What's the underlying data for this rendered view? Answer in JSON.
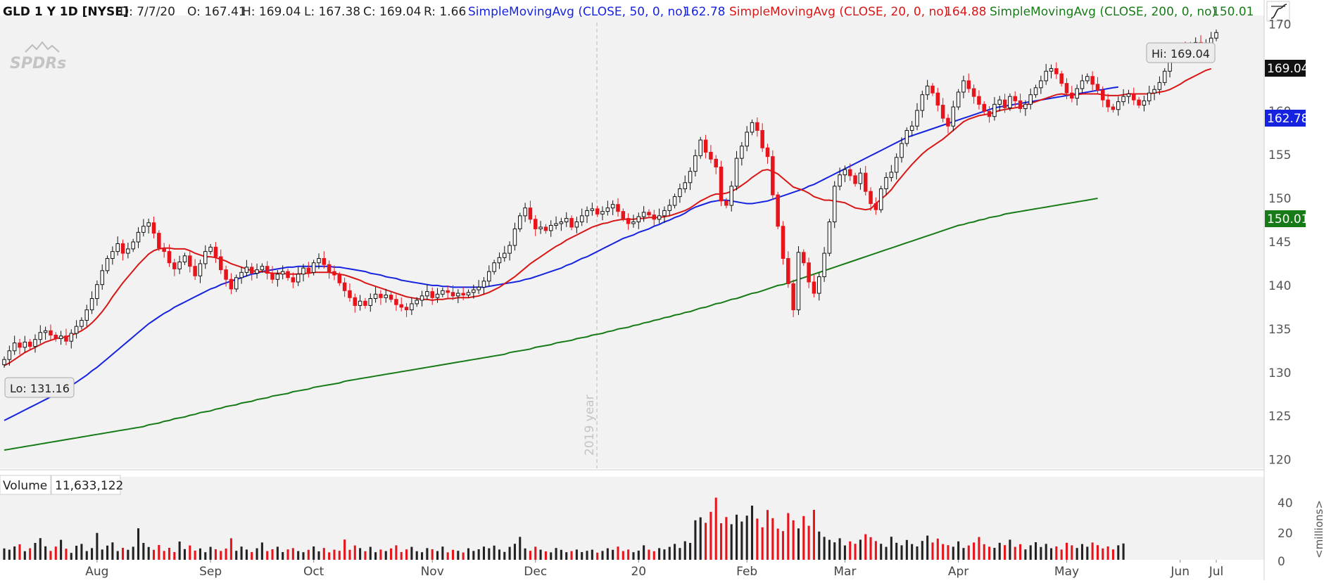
{
  "colors": {
    "background": "#f2f2f2",
    "up_candle": "#ffffff",
    "down_candle": "#e8141c",
    "sma50": "#1523e0",
    "sma20": "#d81616",
    "sma200": "#167a16",
    "volume_up": "#222222",
    "volume_down": "#e8141c"
  },
  "header": {
    "symbol": "GLD 1 Y 1D [NYSE]",
    "date": "D: 7/7/20",
    "open": "O: 167.41",
    "high": "H: 169.04",
    "low": "L: 167.38",
    "close": "C: 169.04",
    "range": "R: 1.66",
    "sma50_label": "SimpleMovingAvg (CLOSE, 50, 0, no)",
    "sma50_value": "162.78",
    "sma20_label": "SimpleMovingAvg (CLOSE, 20, 0, no)",
    "sma20_value": "164.88",
    "sma200_label": "SimpleMovingAvg (CLOSE, 200, 0, no)",
    "sma200_value": "150.01"
  },
  "logo_text": "SPDRs",
  "year_divider_label": "2019 year",
  "hi_label": "Hi: 169.04",
  "lo_label": "Lo: 131.16",
  "tags": {
    "last": "169.04",
    "sma50": "162.78",
    "sma200": "150.01"
  },
  "volume_panel": {
    "label": "Volume",
    "value": "11,633,122",
    "unit_label": "<millions>",
    "y_ticks": [
      "40",
      "20",
      "0"
    ]
  },
  "chart_data": {
    "type": "candlestick",
    "y_ticks": [
      "170",
      "165",
      "160",
      "155",
      "150",
      "145",
      "140",
      "135",
      "130",
      "125",
      "120"
    ],
    "ylim": [
      119,
      171
    ],
    "x_ticks": [
      "Aug",
      "Sep",
      "Oct",
      "Nov",
      "Dec",
      "20",
      "Feb",
      "Mar",
      "Apr",
      "May",
      "Jun",
      "Jul"
    ],
    "closes": [
      131.5,
      132.5,
      133.4,
      132.9,
      133.5,
      133.0,
      133.8,
      134.6,
      134.8,
      134.3,
      133.9,
      134.2,
      133.6,
      134.5,
      135.3,
      136.0,
      137.2,
      138.5,
      140.1,
      141.7,
      143.1,
      143.9,
      144.8,
      143.7,
      144.2,
      145.0,
      146.1,
      146.8,
      147.2,
      146.0,
      144.3,
      143.9,
      142.6,
      141.9,
      142.7,
      143.4,
      142.2,
      141.1,
      142.5,
      143.9,
      144.4,
      143.3,
      141.8,
      140.7,
      139.6,
      140.9,
      141.5,
      142.1,
      141.4,
      141.8,
      142.2,
      141.4,
      140.7,
      141.3,
      141.6,
      140.9,
      140.4,
      141.3,
      142.0,
      141.5,
      142.6,
      143.1,
      142.4,
      141.6,
      141.2,
      140.3,
      139.4,
      138.6,
      137.7,
      138.2,
      137.7,
      138.5,
      139.0,
      138.6,
      138.9,
      138.4,
      137.8,
      137.5,
      137.2,
      137.9,
      138.3,
      138.8,
      139.3,
      138.6,
      139.0,
      139.4,
      139.2,
      138.8,
      139.1,
      138.9,
      139.2,
      139.5,
      139.8,
      140.5,
      141.6,
      142.6,
      143.2,
      143.7,
      144.6,
      146.5,
      148.0,
      148.9,
      147.6,
      146.5,
      146.7,
      146.3,
      146.9,
      147.1,
      147.3,
      147.7,
      146.7,
      147.3,
      148.0,
      148.6,
      148.8,
      148.2,
      148.5,
      148.9,
      149.3,
      148.5,
      147.7,
      147.1,
      147.3,
      147.9,
      148.4,
      148.1,
      147.6,
      148.0,
      148.6,
      149.2,
      150.2,
      151.1,
      151.8,
      153.1,
      154.9,
      156.7,
      155.3,
      154.5,
      153.6,
      149.7,
      149.2,
      151.4,
      154.6,
      156.0,
      157.6,
      158.7,
      157.8,
      155.8,
      154.8,
      150.4,
      146.8,
      143.1,
      140.2,
      137.2,
      143.8,
      142.6,
      140.4,
      139.1,
      141.0,
      143.7,
      147.3,
      151.4,
      152.7,
      153.3,
      152.6,
      151.7,
      152.9,
      150.8,
      149.4,
      148.7,
      151.1,
      152.4,
      153.0,
      154.7,
      156.3,
      157.8,
      158.3,
      160.1,
      161.9,
      162.9,
      162.1,
      160.7,
      159.2,
      158.3,
      160.5,
      162.2,
      163.5,
      162.6,
      161.7,
      160.8,
      160.0,
      159.4,
      160.8,
      161.3,
      160.4,
      161.7,
      161.2,
      160.3,
      160.8,
      161.9,
      162.7,
      163.5,
      164.6,
      164.9,
      164.3,
      163.2,
      162.1,
      161.5,
      162.6,
      163.5,
      164.0,
      163.1,
      162.4,
      161.3,
      160.5,
      160.2,
      161.1,
      161.7,
      162.0,
      161.3,
      160.7,
      161.2,
      162.1,
      162.5,
      163.3,
      164.6,
      166.1,
      167.0,
      167.3,
      166.8,
      167.6,
      167.9,
      167.2,
      167.8,
      168.4,
      169.04
    ],
    "sma20": [
      130.8,
      131.1,
      131.5,
      131.9,
      132.3,
      132.6,
      132.9,
      133.2,
      133.5,
      133.7,
      133.9,
      134.0,
      134.1,
      134.3,
      134.5,
      134.8,
      135.2,
      135.7,
      136.3,
      137.0,
      137.8,
      138.7,
      139.5,
      140.3,
      141.0,
      141.7,
      142.4,
      143.0,
      143.6,
      144.0,
      144.2,
      144.3,
      144.3,
      144.2,
      144.2,
      144.2,
      144.0,
      143.7,
      143.5,
      143.3,
      143.3,
      143.2,
      143.0,
      142.8,
      142.5,
      142.3,
      142.1,
      141.9,
      141.7,
      141.6,
      141.6,
      141.5,
      141.4,
      141.4,
      141.4,
      141.3,
      141.3,
      141.3,
      141.4,
      141.4,
      141.5,
      141.5,
      141.5,
      141.5,
      141.4,
      141.3,
      141.2,
      141.0,
      140.8,
      140.6,
      140.3,
      140.1,
      139.9,
      139.7,
      139.5,
      139.3,
      139.1,
      138.9,
      138.7,
      138.6,
      138.5,
      138.4,
      138.4,
      138.3,
      138.4,
      138.4,
      138.5,
      138.5,
      138.6,
      138.6,
      138.6,
      138.7,
      138.8,
      139.0,
      139.2,
      139.5,
      139.8,
      140.2,
      140.6,
      141.0,
      141.5,
      142.0,
      142.5,
      142.9,
      143.3,
      143.7,
      144.1,
      144.5,
      144.8,
      145.2,
      145.5,
      145.8,
      146.1,
      146.4,
      146.7,
      146.9,
      147.1,
      147.2,
      147.4,
      147.5,
      147.6,
      147.6,
      147.6,
      147.7,
      147.7,
      147.8,
      147.8,
      147.8,
      147.9,
      148.0,
      148.2,
      148.4,
      148.6,
      148.9,
      149.3,
      149.7,
      150.0,
      150.3,
      150.5,
      150.5,
      150.6,
      150.8,
      151.1,
      151.5,
      151.9,
      152.4,
      152.8,
      153.2,
      153.3,
      153.1,
      152.8,
      152.3,
      151.8,
      151.3,
      151.1,
      150.9,
      150.6,
      150.2,
      150.0,
      149.8,
      149.8,
      149.7,
      149.6,
      149.5,
      149.2,
      148.9,
      148.8,
      148.7,
      148.8,
      149.4,
      149.9,
      150.4,
      151.0,
      151.8,
      152.5,
      153.2,
      153.9,
      154.5,
      155.1,
      155.6,
      156.0,
      156.4,
      156.8,
      157.3,
      157.8,
      158.3,
      158.8,
      159.1,
      159.3,
      159.5,
      159.6,
      159.7,
      159.9,
      160.1,
      160.2,
      160.3,
      160.4,
      160.5,
      160.7,
      160.9,
      161.1,
      161.3,
      161.5,
      161.7,
      161.9,
      162.0,
      161.9,
      161.9,
      161.9,
      162.0,
      162.0,
      162.0,
      162.0,
      161.9,
      161.8,
      161.8,
      161.8,
      161.9,
      162.0,
      162.0,
      162.0,
      162.0,
      162.0,
      162.1,
      162.2,
      162.3,
      162.5,
      162.8,
      163.1,
      163.5,
      163.8,
      164.1,
      164.4,
      164.7,
      164.88
    ],
    "sma50": [
      124.5,
      124.8,
      125.1,
      125.4,
      125.7,
      126.0,
      126.3,
      126.6,
      126.9,
      127.2,
      127.5,
      127.8,
      128.1,
      128.5,
      128.9,
      129.3,
      129.7,
      130.2,
      130.6,
      131.1,
      131.6,
      132.1,
      132.6,
      133.1,
      133.6,
      134.1,
      134.6,
      135.1,
      135.6,
      136.0,
      136.4,
      136.8,
      137.1,
      137.5,
      137.8,
      138.1,
      138.4,
      138.7,
      139.0,
      139.3,
      139.6,
      139.8,
      140.1,
      140.3,
      140.5,
      140.7,
      140.9,
      141.1,
      141.3,
      141.4,
      141.6,
      141.7,
      141.8,
      141.9,
      142.0,
      142.1,
      142.1,
      142.2,
      142.2,
      142.2,
      142.2,
      142.2,
      142.2,
      142.2,
      142.1,
      142.1,
      142.0,
      141.9,
      141.8,
      141.7,
      141.6,
      141.4,
      141.3,
      141.2,
      141.0,
      140.9,
      140.8,
      140.6,
      140.5,
      140.4,
      140.3,
      140.2,
      140.1,
      140.0,
      140.0,
      139.9,
      139.9,
      139.8,
      139.8,
      139.8,
      139.8,
      139.8,
      139.8,
      139.8,
      139.9,
      140.0,
      140.1,
      140.2,
      140.3,
      140.4,
      140.5,
      140.7,
      140.8,
      141.0,
      141.2,
      141.4,
      141.6,
      141.8,
      142.0,
      142.3,
      142.5,
      142.8,
      143.1,
      143.3,
      143.6,
      143.9,
      144.2,
      144.5,
      144.8,
      145.1,
      145.4,
      145.6,
      145.8,
      146.1,
      146.3,
      146.5,
      146.8,
      147.0,
      147.3,
      147.5,
      147.8,
      148.0,
      148.3,
      148.7,
      149.0,
      149.2,
      149.4,
      149.6,
      149.7,
      149.8,
      149.8,
      149.7,
      149.6,
      149.5,
      149.4,
      149.4,
      149.5,
      149.6,
      149.7,
      149.9,
      150.1,
      150.3,
      150.5,
      150.7,
      150.9,
      151.1,
      151.4,
      151.6,
      151.9,
      152.2,
      152.5,
      152.8,
      153.1,
      153.4,
      153.7,
      154.0,
      154.3,
      154.6,
      154.9,
      155.2,
      155.5,
      155.8,
      156.1,
      156.4,
      156.7,
      157.0,
      157.2,
      157.4,
      157.6,
      157.8,
      158.0,
      158.2,
      158.4,
      158.6,
      158.8,
      159.0,
      159.2,
      159.4,
      159.6,
      159.8,
      160.0,
      160.2,
      160.4,
      160.5,
      160.6,
      160.7,
      160.8,
      160.9,
      161.0,
      161.1,
      161.2,
      161.3,
      161.4,
      161.5,
      161.6,
      161.7,
      161.8,
      161.9,
      162.0,
      162.1,
      162.2,
      162.3,
      162.4,
      162.5,
      162.6,
      162.7,
      162.78
    ],
    "sma200": [
      121.1,
      121.2,
      121.3,
      121.4,
      121.5,
      121.6,
      121.7,
      121.8,
      121.9,
      122.0,
      122.1,
      122.2,
      122.3,
      122.4,
      122.5,
      122.6,
      122.7,
      122.8,
      122.9,
      123.0,
      123.1,
      123.2,
      123.3,
      123.4,
      123.5,
      123.6,
      123.7,
      123.8,
      124.0,
      124.1,
      124.2,
      124.4,
      124.5,
      124.7,
      124.8,
      124.9,
      125.1,
      125.2,
      125.4,
      125.5,
      125.6,
      125.8,
      125.9,
      126.1,
      126.2,
      126.3,
      126.5,
      126.6,
      126.7,
      126.9,
      127.0,
      127.1,
      127.3,
      127.4,
      127.5,
      127.6,
      127.8,
      127.9,
      128.0,
      128.1,
      128.3,
      128.4,
      128.5,
      128.6,
      128.7,
      128.8,
      129.0,
      129.1,
      129.2,
      129.3,
      129.4,
      129.5,
      129.6,
      129.7,
      129.8,
      129.9,
      130.0,
      130.1,
      130.2,
      130.3,
      130.4,
      130.5,
      130.6,
      130.7,
      130.8,
      130.9,
      131.0,
      131.1,
      131.2,
      131.3,
      131.4,
      131.5,
      131.6,
      131.7,
      131.8,
      131.9,
      132.0,
      132.1,
      132.3,
      132.4,
      132.5,
      132.6,
      132.7,
      132.9,
      133.0,
      133.1,
      133.2,
      133.4,
      133.5,
      133.6,
      133.7,
      133.9,
      134.0,
      134.1,
      134.3,
      134.4,
      134.5,
      134.7,
      134.8,
      135.0,
      135.1,
      135.2,
      135.4,
      135.5,
      135.7,
      135.8,
      136.0,
      136.1,
      136.3,
      136.4,
      136.6,
      136.7,
      136.9,
      137.0,
      137.2,
      137.4,
      137.5,
      137.7,
      137.9,
      138.0,
      138.2,
      138.4,
      138.5,
      138.7,
      138.9,
      139.1,
      139.2,
      139.4,
      139.6,
      139.8,
      140.0,
      140.1,
      140.3,
      140.5,
      140.7,
      140.9,
      141.1,
      141.3,
      141.5,
      141.7,
      141.9,
      142.1,
      142.3,
      142.5,
      142.7,
      142.9,
      143.1,
      143.3,
      143.5,
      143.7,
      143.9,
      144.1,
      144.3,
      144.5,
      144.7,
      144.9,
      145.1,
      145.3,
      145.5,
      145.7,
      145.9,
      146.1,
      146.3,
      146.5,
      146.7,
      146.9,
      147.0,
      147.2,
      147.3,
      147.5,
      147.6,
      147.8,
      147.9,
      148.0,
      148.2,
      148.3,
      148.4,
      148.5,
      148.6,
      148.7,
      148.8,
      148.9,
      149.0,
      149.1,
      149.2,
      149.3,
      149.4,
      149.5,
      149.6,
      149.7,
      149.8,
      149.9,
      150.01
    ],
    "volume_ylim": [
      0,
      44
    ],
    "volume": [
      8.1,
      7.2,
      9.5,
      11.0,
      6.1,
      8.2,
      12.0,
      15.4,
      9.6,
      6.3,
      9.4,
      14.2,
      7.9,
      4.9,
      10.0,
      11.3,
      6.2,
      8.3,
      19.1,
      7.3,
      10.1,
      12.4,
      6.2,
      8.5,
      7.1,
      9.3,
      22.4,
      12.0,
      9.1,
      7.1,
      10.5,
      6.3,
      8.5,
      5.5,
      13.0,
      7.6,
      10.2,
      6.5,
      8.1,
      5.4,
      9.2,
      7.5,
      6.3,
      8.0,
      15.3,
      6.4,
      9.4,
      7.3,
      5.5,
      8.2,
      12.3,
      6.2,
      7.5,
      9.3,
      5.5,
      7.4,
      8.3,
      6.2,
      5.4,
      7.1,
      9.5,
      6.0,
      8.4,
      5.3,
      7.2,
      6.4,
      14.4,
      7.1,
      10.2,
      8.3,
      6.1,
      9.2,
      5.4,
      7.3,
      6.2,
      8.1,
      10.3,
      5.5,
      7.4,
      9.2,
      6.1,
      5.4,
      8.3,
      7.5,
      6.2,
      9.4,
      5.3,
      7.1,
      6.4,
      5.2,
      8.2,
      6.3,
      7.5,
      9.4,
      8.2,
      10.1,
      7.3,
      5.6,
      9.2,
      11.4,
      16.3,
      8.1,
      6.4,
      9.3,
      7.2,
      6.0,
      5.3,
      8.4,
      7.1,
      5.4,
      6.2,
      7.3,
      5.5,
      6.4,
      7.2,
      5.1,
      6.3,
      8.2,
      7.1,
      9.4,
      6.2,
      7.3,
      5.4,
      6.5,
      10.3,
      7.2,
      6.1,
      8.3,
      7.4,
      9.2,
      11.3,
      8.4,
      13.2,
      12.0,
      28.1,
      30.2,
      26.3,
      34.1,
      44.2,
      26.0,
      30.4,
      25.3,
      32.1,
      27.2,
      31.4,
      38.5,
      29.3,
      23.1,
      35.4,
      29.6,
      22.2,
      20.4,
      33.2,
      28.1,
      22.3,
      31.1,
      24.2,
      35.5,
      20.1,
      16.3,
      14.2,
      12.4,
      15.3,
      10.2,
      13.1,
      11.4,
      14.3,
      18.2,
      16.1,
      13.3,
      11.4,
      9.2,
      16.4,
      12.1,
      10.3,
      14.1,
      11.2,
      9.5,
      13.4,
      17.2,
      12.3,
      15.1,
      11.2,
      10.4,
      9.3,
      13.1,
      8.4,
      10.2,
      12.3,
      16.2,
      11.1,
      9.3,
      8.5,
      12.1,
      10.4,
      14.3,
      9.2,
      11.1,
      7.4,
      10.3,
      12.5,
      9.1,
      11.3,
      8.2,
      9.5,
      7.3,
      12.1,
      10.3,
      8.4,
      11.2,
      9.3,
      12.3,
      10.4,
      8.1,
      9.5,
      7.4,
      10.3,
      11.6
    ]
  }
}
